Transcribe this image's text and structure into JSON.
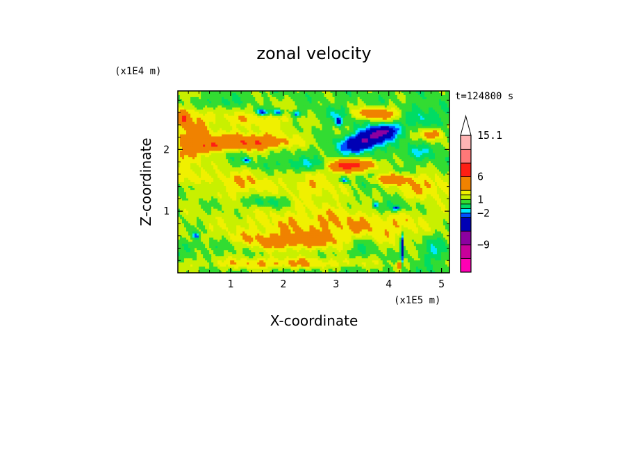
{
  "chart_data": {
    "type": "heatmap",
    "title": "zonal velocity",
    "xlabel": "X-coordinate",
    "ylabel": "Z-coordinate",
    "x_scale_label": "(x1E5 m)",
    "y_scale_label": "(x1E4 m)",
    "time_label": "t=124800 s",
    "xlim": [
      0,
      5.15
    ],
    "ylim": [
      0,
      2.95
    ],
    "x_ticks": [
      1,
      2,
      3,
      4,
      5
    ],
    "y_ticks": [
      1,
      2
    ],
    "x_tick_labels": [
      "1",
      "2",
      "3",
      "4",
      "5"
    ],
    "y_tick_labels": [
      "1",
      "2"
    ],
    "colorbar": {
      "bins": [
        {
          "from": -15,
          "to": -12,
          "color": "#ff00b4"
        },
        {
          "from": -12,
          "to": -9,
          "color": "#c8009b"
        },
        {
          "from": -9,
          "to": -6,
          "color": "#8c00a0"
        },
        {
          "from": -6,
          "to": -3,
          "color": "#0000b4"
        },
        {
          "from": -3,
          "to": -2,
          "color": "#0050ff"
        },
        {
          "from": -2,
          "to": -1,
          "color": "#00e6ff"
        },
        {
          "from": -1,
          "to": 0,
          "color": "#00dc64"
        },
        {
          "from": 0,
          "to": 1,
          "color": "#32dc32"
        },
        {
          "from": 1,
          "to": 2,
          "color": "#c8f000"
        },
        {
          "from": 2,
          "to": 3,
          "color": "#f0f000"
        },
        {
          "from": 3,
          "to": 6,
          "color": "#f08200"
        },
        {
          "from": 6,
          "to": 9,
          "color": "#ff1e14"
        },
        {
          "from": 9,
          "to": 12,
          "color": "#ff7878"
        },
        {
          "from": 12,
          "to": 15.1,
          "color": "#ffb4b4"
        }
      ],
      "overflow_color": "#ffffff",
      "tick_labels": [
        {
          "value": 15.1,
          "label": "15.1"
        },
        {
          "value": 6,
          "label": "6"
        },
        {
          "value": 1,
          "label": "1"
        },
        {
          "value": -2,
          "label": "−2"
        },
        {
          "value": -9,
          "label": "−9"
        }
      ]
    },
    "features": [
      {
        "x": 3.15,
        "z": 0.78,
        "value": 2.5,
        "sx": 2.4,
        "sz": 0.34
      },
      {
        "x": 1.5,
        "z": 2.55,
        "value": 2.5,
        "sx": 1.1,
        "sz": 0.2
      },
      {
        "x": 1.1,
        "z": 1.45,
        "value": 2.5,
        "sx": 0.8,
        "sz": 0.22
      },
      {
        "x": 2.0,
        "z": 0.5,
        "value": 2.5,
        "sx": 1.1,
        "sz": 0.14
      },
      {
        "x": 2.0,
        "z": 0.15,
        "value": 2.5,
        "sx": 1.6,
        "sz": 0.1
      },
      {
        "x": 0.2,
        "z": 2.1,
        "value": 2.5,
        "sx": 0.35,
        "sz": 0.7
      },
      {
        "x": 4.7,
        "z": 1.4,
        "value": 2.5,
        "sx": 0.6,
        "sz": 0.2
      },
      {
        "x": 2.6,
        "z": 1.4,
        "value": 2.0,
        "sx": 0.55,
        "sz": 0.25
      },
      {
        "x": 1.4,
        "z": 2.1,
        "value": 4.5,
        "sx": 0.7,
        "sz": 0.11
      },
      {
        "x": 0.6,
        "z": 2.05,
        "value": 4.0,
        "sx": 0.25,
        "sz": 0.1
      },
      {
        "x": 3.75,
        "z": 2.58,
        "value": 4.5,
        "sx": 0.45,
        "sz": 0.1
      },
      {
        "x": 3.4,
        "z": 1.75,
        "value": 4.5,
        "sx": 0.45,
        "sz": 0.1
      },
      {
        "x": 3.1,
        "z": 1.72,
        "value": 4.0,
        "sx": 0.25,
        "sz": 0.1
      },
      {
        "x": 0.12,
        "z": 2.5,
        "value": 4.0,
        "sx": 0.1,
        "sz": 0.12
      },
      {
        "x": 4.1,
        "z": 1.52,
        "value": 4.0,
        "sx": 0.3,
        "sz": 0.08
      },
      {
        "x": 4.82,
        "z": 2.25,
        "value": 4.0,
        "sx": 0.2,
        "sz": 0.1
      },
      {
        "x": 1.2,
        "z": 2.2,
        "value": 1.5,
        "sx": 1.2,
        "sz": 0.15
      },
      {
        "x": 3.55,
        "z": 2.14,
        "value": -7.0,
        "sx": 0.47,
        "sz": 0.14,
        "rot": 0.45
      },
      {
        "x": 3.9,
        "z": 2.3,
        "value": -4.5,
        "sx": 0.28,
        "sz": 0.1,
        "rot": 0.25
      },
      {
        "x": 1.6,
        "z": 2.6,
        "value": -4.0,
        "sx": 0.12,
        "sz": 0.05
      },
      {
        "x": 1.9,
        "z": 2.6,
        "value": -4.0,
        "sx": 0.08,
        "sz": 0.05
      },
      {
        "x": 2.25,
        "z": 2.58,
        "value": -4.0,
        "sx": 0.07,
        "sz": 0.05
      },
      {
        "x": 3.05,
        "z": 2.45,
        "value": -4.0,
        "sx": 0.06,
        "sz": 0.07
      },
      {
        "x": 0.35,
        "z": 0.6,
        "value": -4.0,
        "sx": 0.06,
        "sz": 0.05
      },
      {
        "x": 3.15,
        "z": 1.5,
        "value": -3.5,
        "sx": 0.07,
        "sz": 0.04
      },
      {
        "x": 1.3,
        "z": 1.82,
        "value": -3.5,
        "sx": 0.08,
        "sz": 0.04
      },
      {
        "x": 3.75,
        "z": 1.1,
        "value": -4.0,
        "sx": 0.05,
        "sz": 0.04
      },
      {
        "x": 4.15,
        "z": 1.05,
        "value": -3.5,
        "sx": 0.07,
        "sz": 0.04
      },
      {
        "x": 4.25,
        "z": 0.4,
        "value": -7.0,
        "sx": 0.025,
        "sz": 0.22
      },
      {
        "x": 3.0,
        "z": 2.55,
        "value": -1.6,
        "sx": 0.5,
        "sz": 0.13
      },
      {
        "x": 1.7,
        "z": 2.62,
        "value": -1.6,
        "sx": 0.75,
        "sz": 0.1
      },
      {
        "x": 2.4,
        "z": 1.75,
        "value": -1.6,
        "sx": 0.6,
        "sz": 0.1
      },
      {
        "x": 1.7,
        "z": 1.15,
        "value": -1.6,
        "sx": 0.45,
        "sz": 0.09
      },
      {
        "x": 3.45,
        "z": 0.45,
        "value": -1.6,
        "sx": 0.3,
        "sz": 0.16
      },
      {
        "x": 4.0,
        "z": 1.05,
        "value": -1.6,
        "sx": 0.45,
        "sz": 0.13
      },
      {
        "x": 4.85,
        "z": 0.45,
        "value": -1.6,
        "sx": 0.25,
        "sz": 0.35
      },
      {
        "x": 4.65,
        "z": 2.55,
        "value": -1.6,
        "sx": 0.35,
        "sz": 0.18
      },
      {
        "x": 0.5,
        "z": 1.4,
        "value": -1.5,
        "sx": 0.45,
        "sz": 0.1
      },
      {
        "x": 0.7,
        "z": 2.75,
        "value": -1.5,
        "sx": 0.6,
        "sz": 0.1
      },
      {
        "x": 4.55,
        "z": 1.95,
        "value": -1.5,
        "sx": 0.35,
        "sz": 0.12
      },
      {
        "x": 0.75,
        "z": 0.45,
        "value": -1.0,
        "sx": 0.8,
        "sz": 0.1
      },
      {
        "x": 2.75,
        "z": 0.05,
        "value": -0.5,
        "sx": 1.2,
        "sz": 0.06
      },
      {
        "x": 4.2,
        "z": 0.12,
        "value": 5.0,
        "sx": 0.05,
        "sz": 0.06
      }
    ]
  }
}
